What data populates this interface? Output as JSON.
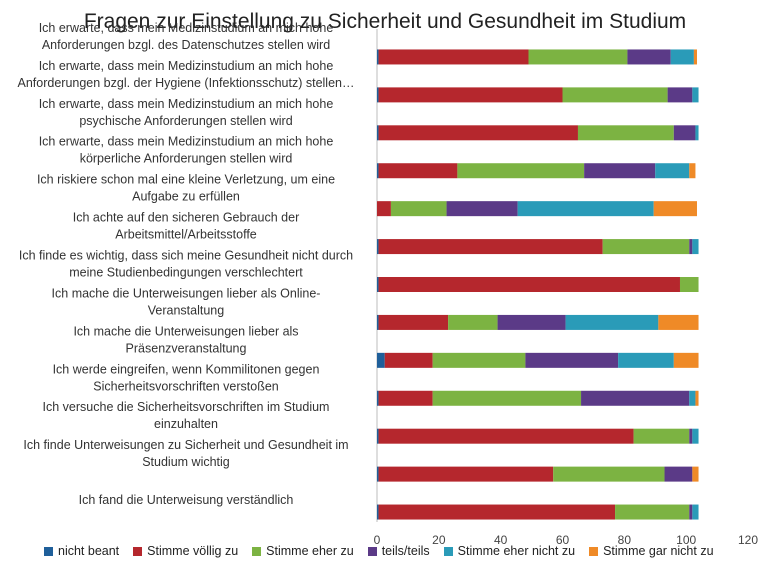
{
  "chart_data": {
    "type": "bar",
    "orientation": "horizontal",
    "stacked": true,
    "title": "Fragen zur Einstellung zu Sicherheit und Gesundheit im Studium",
    "xlim": [
      0,
      120
    ],
    "xticks": [
      0,
      20,
      40,
      60,
      80,
      100,
      120
    ],
    "grid": false,
    "legend_position": "bottom",
    "categories": [
      [
        "Ich erwarte, dass mein Medizinstudium an mich hohe",
        "Anforderungen bzgl. des Datenschutzes stellen wird"
      ],
      [
        "Ich erwarte, dass mein Medizinstudium an mich hohe",
        "Anforderungen bzgl. der Hygiene (Infektionsschutz) stellen…"
      ],
      [
        "Ich erwarte, dass mein Medizinstudium an mich hohe",
        "psychische Anforderungen stellen wird"
      ],
      [
        "Ich erwarte, dass mein Medizinstudium an mich hohe",
        "körperliche Anforderungen stellen wird"
      ],
      [
        "Ich riskiere schon mal eine kleine Verletzung, um eine",
        "Aufgabe zu erfüllen"
      ],
      [
        "Ich achte auf den sicheren Gebrauch der",
        "Arbeitsmittel/Arbeitsstoffe"
      ],
      [
        "Ich finde es wichtig, dass sich meine Gesundheit nicht durch",
        "meine Studienbedingungen verschlechtert"
      ],
      [
        "Ich mache die Unterweisungen lieber als Online-",
        "Veranstaltung"
      ],
      [
        "Ich mache die Unterweisungen lieber als",
        "Präsenzveranstaltung"
      ],
      [
        "Ich werde eingreifen, wenn Kommilitonen gegen",
        "Sicherheitsvorschriften verstoßen"
      ],
      [
        "Ich versuche die Sicherheitsvorschriften im Studium",
        "einzuhalten"
      ],
      [
        "Ich finde Unterweisungen zu Sicherheit und Gesundheit im",
        "Studium wichtig"
      ],
      [
        "Ich fand die Unterweisung verständlich"
      ]
    ],
    "series": [
      {
        "name": "nicht beant",
        "color": "#1f5f9a",
        "values": [
          0.5,
          0.5,
          0.5,
          0.5,
          0,
          0.5,
          0.5,
          0.5,
          2.5,
          0.5,
          0.5,
          0.5,
          0.5
        ]
      },
      {
        "name": "Stimme völlig zu",
        "color": "#b5272d",
        "values": [
          48.5,
          59.5,
          64.5,
          25.5,
          4.5,
          72.5,
          97.5,
          22.5,
          15.5,
          17.5,
          82.5,
          56.5,
          76.5
        ]
      },
      {
        "name": "Stimme eher zu",
        "color": "#7cb342",
        "values": [
          32,
          34,
          31,
          41,
          18,
          28,
          6,
          16,
          30,
          48,
          18,
          36,
          24
        ]
      },
      {
        "name": "teils/teils",
        "color": "#5b3a87",
        "values": [
          14,
          8,
          7,
          23,
          23,
          1,
          0,
          22,
          30,
          35,
          1,
          9,
          1
        ]
      },
      {
        "name": "Stimme eher nicht zu",
        "color": "#2a9bb8",
        "values": [
          7.5,
          2,
          1,
          11,
          44,
          2,
          0,
          30,
          18,
          2,
          2,
          0,
          2
        ]
      },
      {
        "name": "Stimme gar nicht zu",
        "color": "#ef8a27",
        "values": [
          1,
          0,
          0,
          2,
          14,
          0,
          0,
          13,
          8,
          1,
          0,
          2,
          0
        ]
      }
    ]
  }
}
